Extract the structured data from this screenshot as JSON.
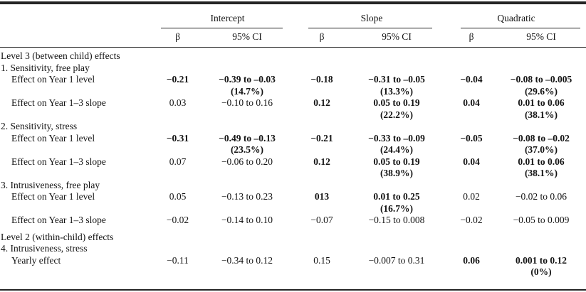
{
  "table": {
    "groups": [
      {
        "label": "Intercept"
      },
      {
        "label": "Slope"
      },
      {
        "label": "Quadratic"
      }
    ],
    "subheader": {
      "beta": "β",
      "ci": "95% CI"
    },
    "rows": [
      {
        "kind": "section",
        "label": "Level 3 (between child) effects"
      },
      {
        "kind": "subsection",
        "label": "1. Sensitivity, free play"
      },
      {
        "kind": "data",
        "label": "Effect on Year 1 level",
        "i": {
          "beta": "−0.21",
          "ci": "−0.39 to –0.03",
          "pct": "(14.7%)",
          "bold": true
        },
        "s": {
          "beta": "−0.18",
          "ci": "−0.31 to –0.05",
          "pct": "(13.3%)",
          "bold": true
        },
        "q": {
          "beta": "−0.04",
          "ci": "−0.08 to –0.005",
          "pct": "(29.6%)",
          "bold": true
        }
      },
      {
        "kind": "data",
        "label": "Effect on Year 1–3 slope",
        "i": {
          "beta": "0.03",
          "ci": "−0.10 to 0.16",
          "bold": false
        },
        "s": {
          "beta": "0.12",
          "ci": "0.05 to 0.19",
          "pct": "(22.2%)",
          "bold": true
        },
        "q": {
          "beta": "0.04",
          "ci": "0.01 to 0.06",
          "pct": "(38.1%)",
          "bold": true
        }
      },
      {
        "kind": "subsection",
        "label": "2. Sensitivity, stress"
      },
      {
        "kind": "data",
        "label": "Effect on Year 1 level",
        "i": {
          "beta": "−0.31",
          "ci": "−0.49 to –0.13",
          "pct": "(23.5%)",
          "bold": true
        },
        "s": {
          "beta": "−0.21",
          "ci": "−0.33 to –0.09",
          "pct": "(24.4%)",
          "bold": true
        },
        "q": {
          "beta": "−0.05",
          "ci": "−0.08 to –0.02",
          "pct": "(37.0%)",
          "bold": true
        }
      },
      {
        "kind": "data",
        "label": "Effect on Year 1–3 slope",
        "i": {
          "beta": "0.07",
          "ci": "−0.06 to 0.20",
          "bold": false
        },
        "s": {
          "beta": "0.12",
          "ci": "0.05 to 0.19",
          "pct": "(38.9%)",
          "bold": true
        },
        "q": {
          "beta": "0.04",
          "ci": "0.01 to 0.06",
          "pct": "(38.1%)",
          "bold": true
        }
      },
      {
        "kind": "subsection",
        "label": "3. Intrusiveness, free play"
      },
      {
        "kind": "data",
        "label": "Effect on Year 1 level",
        "i": {
          "beta": "0.05",
          "ci": "−0.13 to 0.23",
          "bold": false
        },
        "s": {
          "beta": "013",
          "ci": "0.01 to 0.25",
          "pct": "(16.7%)",
          "bold": true
        },
        "q": {
          "beta": "0.02",
          "ci": "−0.02 to 0.06",
          "bold": false
        }
      },
      {
        "kind": "data",
        "label": "Effect on Year 1–3 slope",
        "i": {
          "beta": "−0.02",
          "ci": "−0.14 to 0.10",
          "bold": false
        },
        "s": {
          "beta": "−0.07",
          "ci": "−0.15 to 0.008",
          "bold": false
        },
        "q": {
          "beta": "−0.02",
          "ci": "−0.05 to 0.009",
          "bold": false
        }
      },
      {
        "kind": "section",
        "label": "Level 2 (within-child) effects"
      },
      {
        "kind": "subsection",
        "label": "4. Intrusiveness, stress"
      },
      {
        "kind": "data",
        "label": "Yearly effect",
        "i": {
          "beta": "−0.11",
          "ci": "−0.34 to 0.12",
          "bold": false
        },
        "s": {
          "beta": "0.15",
          "ci": "−0.007 to 0.31",
          "bold": false
        },
        "q": {
          "beta": "0.06",
          "ci": "0.001 to 0.12",
          "pct": "(0%)",
          "bold": true
        }
      }
    ]
  },
  "colors": {
    "text": "#131313",
    "rule": "#242424",
    "background": "#ffffff"
  }
}
